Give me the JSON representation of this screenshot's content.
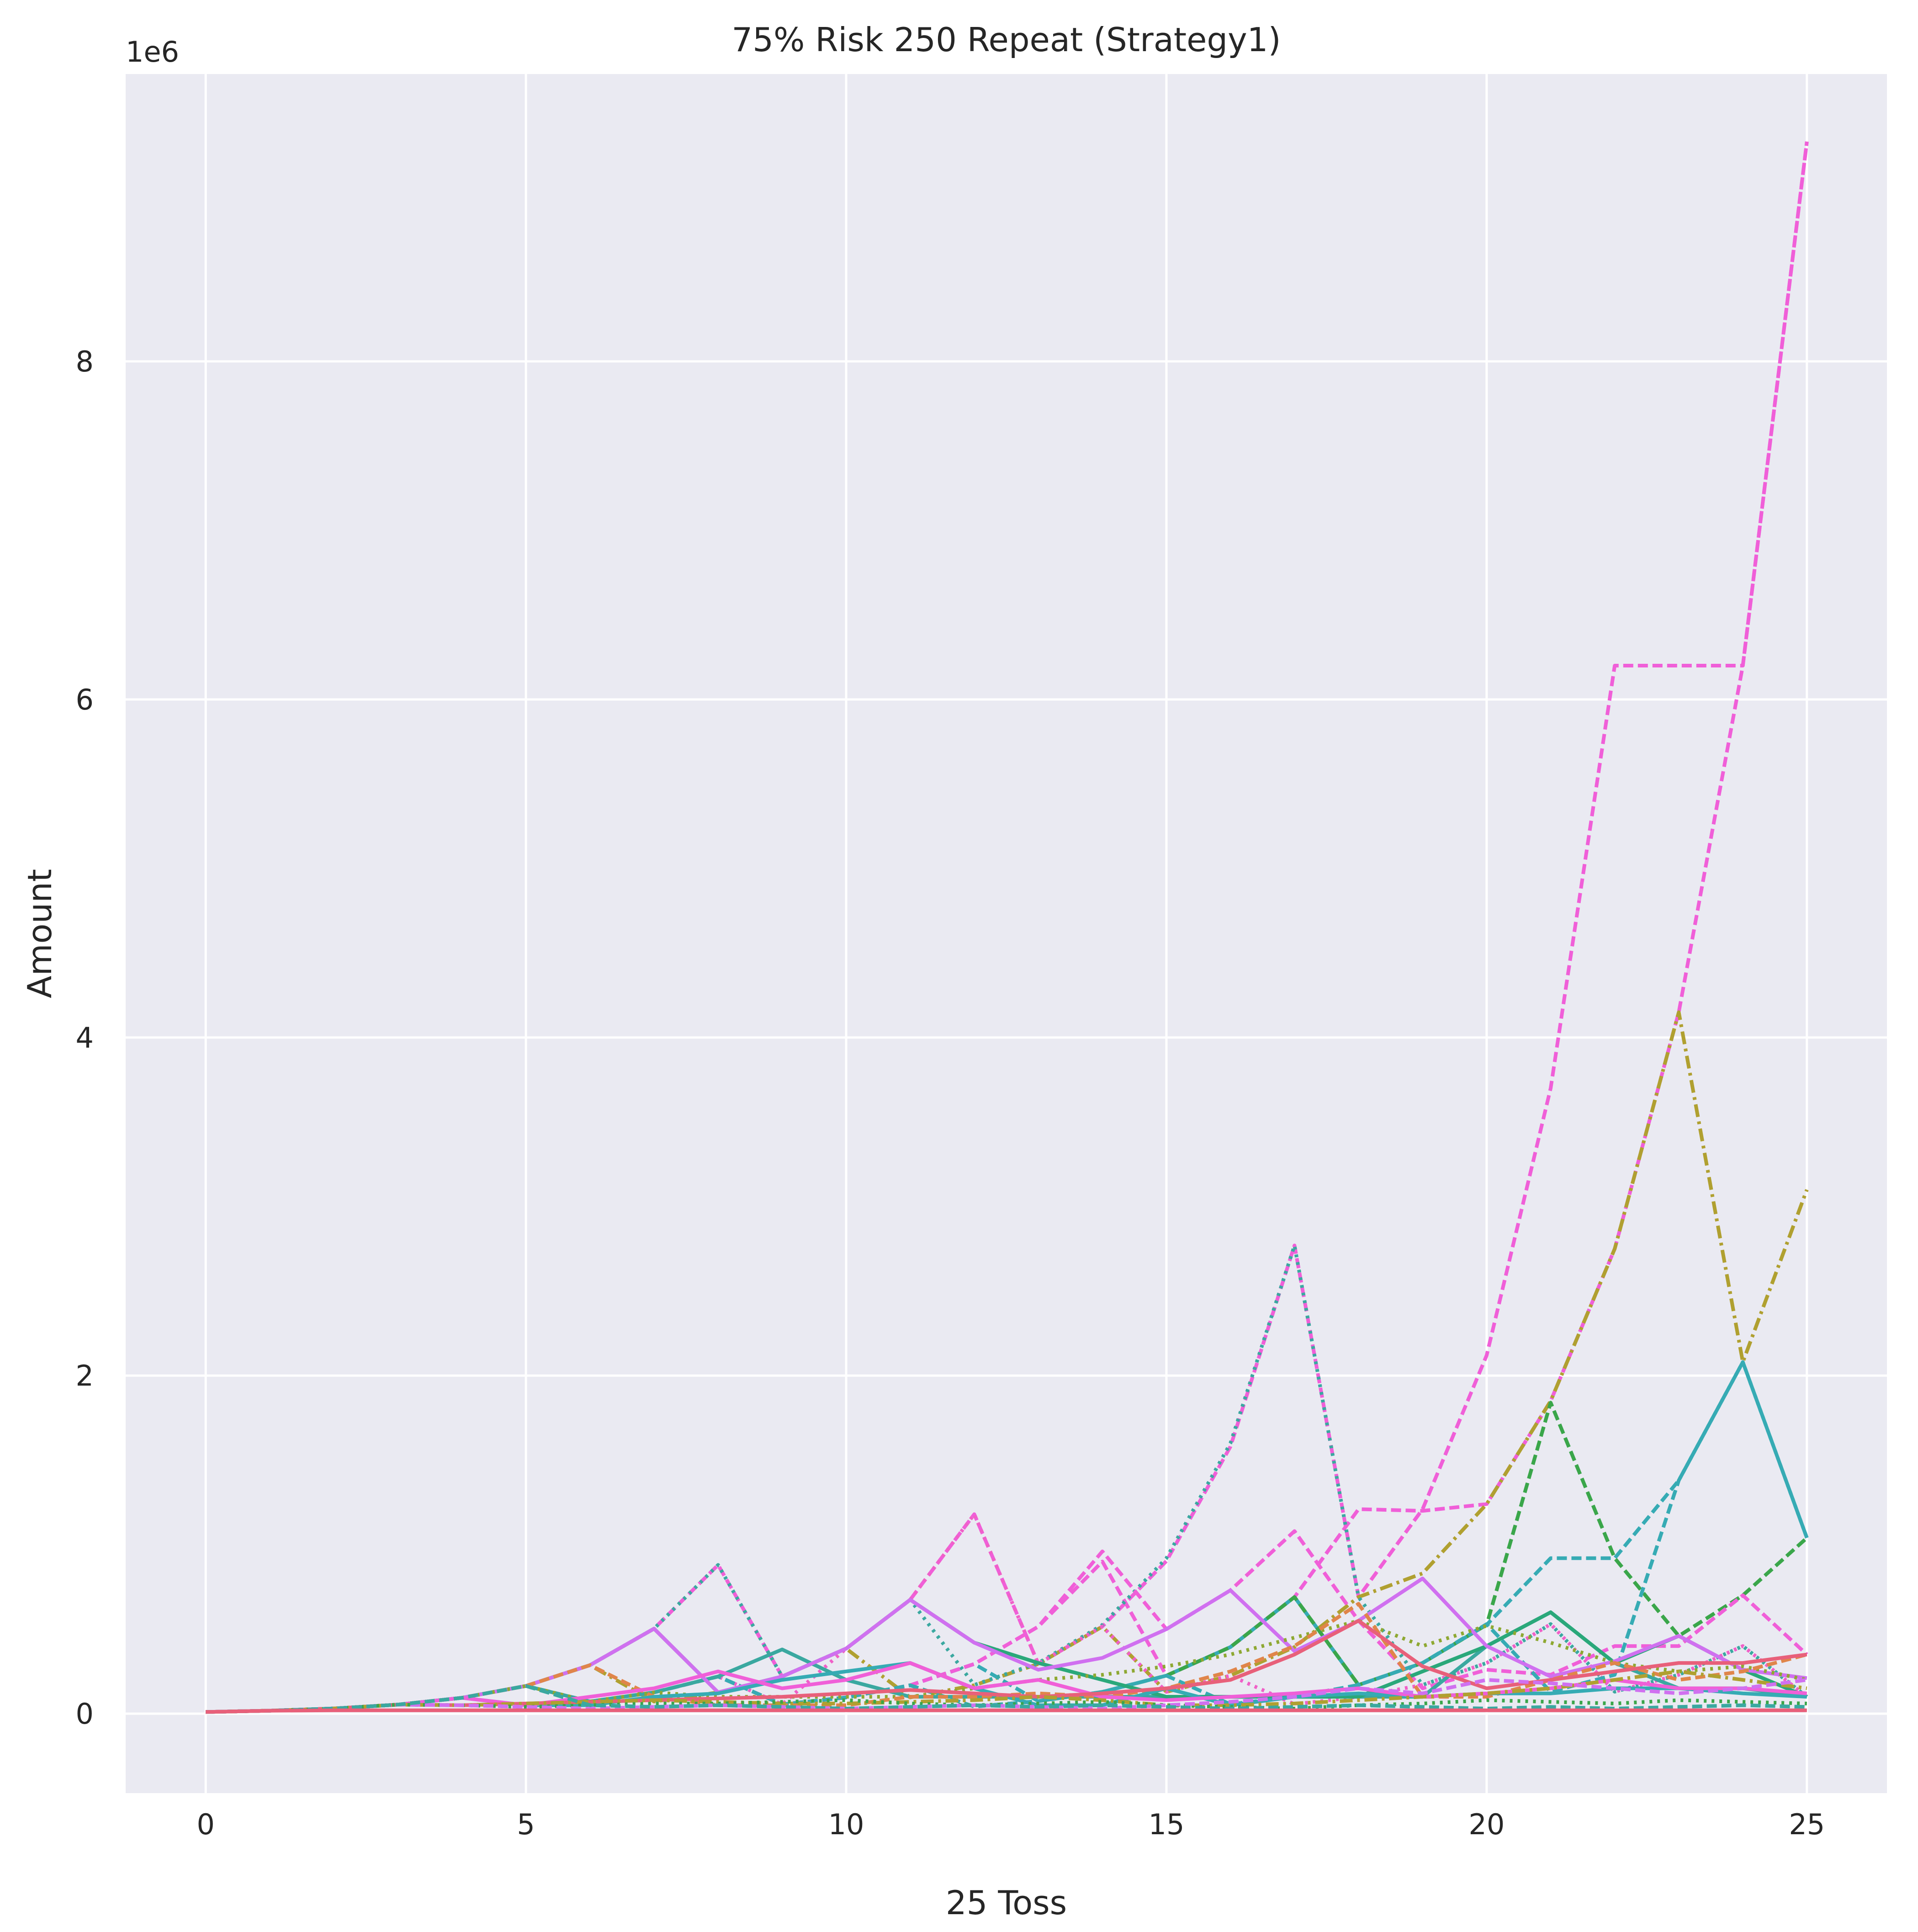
{
  "chart_data": {
    "type": "line",
    "title": "75% Risk 250 Repeat (Strategy1)",
    "xlabel": "25 Toss",
    "ylabel": "Amount",
    "y_offset_label": "1e6",
    "xlim": [
      -1.25,
      26.25
    ],
    "ylim": [
      -0.47,
      9.7
    ],
    "x_ticks": [
      0,
      5,
      10,
      15,
      20,
      25
    ],
    "y_ticks": [
      0,
      2,
      4,
      6,
      8
    ],
    "grid": true,
    "background": "#eaeaf2",
    "grid_color": "#ffffff",
    "x": [
      0,
      1,
      2,
      3,
      4,
      5,
      6,
      7,
      8,
      9,
      10,
      11,
      12,
      13,
      14,
      15,
      16,
      17,
      18,
      19,
      20,
      21,
      22,
      23,
      24,
      25
    ],
    "series": [
      {
        "color": "#f05fd8",
        "dash": "dashed",
        "values": [
          0.01,
          0.0175,
          0.0306,
          0.0536,
          0.0938,
          0.164,
          0.287,
          0.503,
          0.88,
          0.22,
          0.385,
          0.674,
          1.18,
          0.295,
          0.516,
          0.903,
          1.58,
          2.77,
          0.69,
          1.21,
          2.12,
          3.7,
          6.2,
          6.2,
          6.2,
          9.3
        ]
      },
      {
        "color": "#f05fd8",
        "dash": "dashed",
        "values": [
          0.01,
          0.0175,
          0.0306,
          0.0536,
          0.0938,
          0.164,
          0.072,
          0.126,
          0.22,
          0.055,
          0.096,
          0.168,
          0.294,
          0.515,
          0.9,
          0.225,
          0.394,
          0.69,
          1.21,
          1.2,
          1.24,
          1.85,
          2.75,
          4.15,
          6.2,
          9.3
        ]
      },
      {
        "color": "#b0a030",
        "dash": "dashdot",
        "values": [
          0.01,
          0.0175,
          0.0306,
          0.0536,
          0.0938,
          0.164,
          0.287,
          0.072,
          0.126,
          0.22,
          0.385,
          0.096,
          0.168,
          0.294,
          0.515,
          0.129,
          0.225,
          0.394,
          0.69,
          0.83,
          1.24,
          1.85,
          2.75,
          4.15,
          2.08,
          3.1
        ]
      },
      {
        "color": "#36abb4",
        "dash": "dashed",
        "values": [
          0.01,
          0.0175,
          0.0306,
          0.0536,
          0.0938,
          0.164,
          0.072,
          0.126,
          0.22,
          0.055,
          0.096,
          0.168,
          0.294,
          0.074,
          0.129,
          0.225,
          0.394,
          0.69,
          0.17,
          0.3,
          0.526,
          0.92,
          0.92,
          1.38,
          2.08,
          1.04
        ]
      },
      {
        "color": "#3aa8a0",
        "dash": "dotted",
        "values": [
          0.01,
          0.0175,
          0.0306,
          0.0536,
          0.0938,
          0.164,
          0.287,
          0.503,
          0.88,
          0.22,
          0.385,
          0.674,
          0.17,
          0.3,
          0.525,
          0.92,
          1.6,
          2.77,
          0.69,
          0.17,
          0.3,
          0.53,
          0.13,
          0.23,
          0.4,
          0.1
        ]
      },
      {
        "color": "#3aa64a",
        "dash": "dashed",
        "values": [
          0.01,
          0.0175,
          0.0306,
          0.0536,
          0.0938,
          0.164,
          0.072,
          0.126,
          0.22,
          0.055,
          0.096,
          0.168,
          0.042,
          0.074,
          0.129,
          0.225,
          0.394,
          0.69,
          0.17,
          0.3,
          0.526,
          1.84,
          0.92,
          0.46,
          0.7,
          1.04
        ]
      },
      {
        "color": "#f060c8",
        "dash": "dotted",
        "values": [
          0.01,
          0.0175,
          0.0306,
          0.0536,
          0.0938,
          0.164,
          0.072,
          0.126,
          0.22,
          0.055,
          0.385,
          0.674,
          1.18,
          0.295,
          0.516,
          0.129,
          0.225,
          0.056,
          0.1,
          0.17,
          0.3,
          0.53,
          0.13,
          0.23,
          0.4,
          0.1
        ]
      },
      {
        "color": "#f05fd8",
        "dash": "dashed",
        "values": [
          0.01,
          0.0175,
          0.0306,
          0.0536,
          0.0938,
          0.164,
          0.072,
          0.126,
          0.22,
          0.055,
          0.096,
          0.168,
          0.294,
          0.515,
          0.96,
          0.5,
          0.73,
          1.08,
          0.55,
          0.15,
          0.26,
          0.23,
          0.4,
          0.4,
          0.7,
          0.35
        ]
      },
      {
        "color": "#36abb4",
        "dash": "dashed",
        "values": [
          0.01,
          0.0175,
          0.0306,
          0.0536,
          0.0938,
          0.164,
          0.072,
          0.126,
          0.22,
          0.055,
          0.096,
          0.168,
          0.042,
          0.074,
          0.129,
          0.225,
          0.056,
          0.1,
          0.17,
          0.3,
          0.53,
          0.13,
          0.23,
          1.38,
          2.08,
          1.04
        ]
      },
      {
        "color": "#3aa8a0",
        "dash": "solid",
        "values": [
          0.01,
          0.0175,
          0.0306,
          0.0536,
          0.0938,
          0.164,
          0.072,
          0.126,
          0.22,
          0.38,
          0.2,
          0.1,
          0.1,
          0.1,
          0.1,
          0.1,
          0.1,
          0.1,
          0.1,
          0.1,
          0.4,
          0.6,
          0.3,
          0.15,
          0.15,
          0.1
        ]
      },
      {
        "color": "#2aa87a",
        "dash": "solid",
        "values": [
          0.01,
          0.0175,
          0.0306,
          0.0536,
          0.0938,
          0.164,
          0.287,
          0.503,
          0.126,
          0.22,
          0.385,
          0.674,
          0.42,
          0.3,
          0.2,
          0.1,
          0.1,
          0.1,
          0.1,
          0.25,
          0.4,
          0.6,
          0.3,
          0.46,
          0.26,
          0.1
        ]
      },
      {
        "color": "#d070f0",
        "dash": "solid",
        "values": [
          0.01,
          0.0175,
          0.0306,
          0.0536,
          0.0938,
          0.164,
          0.287,
          0.503,
          0.126,
          0.22,
          0.385,
          0.674,
          0.42,
          0.26,
          0.33,
          0.5,
          0.73,
          0.37,
          0.55,
          0.8,
          0.4,
          0.22,
          0.31,
          0.46,
          0.26,
          0.21
        ]
      },
      {
        "color": "#8ea832",
        "dash": "dotted",
        "values": [
          0.01,
          0.0175,
          0.0306,
          0.0536,
          0.0938,
          0.164,
          0.072,
          0.126,
          0.1,
          0.1,
          0.1,
          0.1,
          0.15,
          0.2,
          0.23,
          0.28,
          0.35,
          0.45,
          0.55,
          0.4,
          0.52,
          0.42,
          0.3,
          0.25,
          0.28,
          0.2
        ]
      },
      {
        "color": "#e0854a",
        "dash": "dashed",
        "values": [
          0.01,
          0.0175,
          0.0306,
          0.0536,
          0.0938,
          0.164,
          0.287,
          0.1,
          0.05,
          0.05,
          0.05,
          0.1,
          0.1,
          0.12,
          0.1,
          0.15,
          0.25,
          0.4,
          0.65,
          0.1,
          0.1,
          0.2,
          0.3,
          0.2,
          0.25,
          0.35
        ]
      },
      {
        "color": "#36abb4",
        "dash": "solid",
        "values": [
          0.01,
          0.0175,
          0.0306,
          0.0536,
          0.0938,
          0.05,
          0.05,
          0.1,
          0.12,
          0.2,
          0.25,
          0.3,
          0.15,
          0.05,
          0.05,
          0.15,
          0.05,
          0.1,
          0.12,
          0.1,
          0.12,
          0.12,
          0.15,
          0.15,
          0.12,
          0.1
        ]
      },
      {
        "color": "#f05fd8",
        "dash": "solid",
        "values": [
          0.01,
          0.0175,
          0.0306,
          0.0536,
          0.0938,
          0.05,
          0.1,
          0.15,
          0.25,
          0.15,
          0.2,
          0.3,
          0.15,
          0.2,
          0.1,
          0.08,
          0.1,
          0.12,
          0.15,
          0.1,
          0.12,
          0.15,
          0.2,
          0.15,
          0.15,
          0.12
        ]
      },
      {
        "color": "#e8607a",
        "dash": "solid",
        "values": [
          0.01,
          0.0175,
          0.0306,
          0.0536,
          0.05,
          0.06,
          0.07,
          0.08,
          0.09,
          0.1,
          0.12,
          0.14,
          0.12,
          0.1,
          0.12,
          0.15,
          0.2,
          0.35,
          0.55,
          0.28,
          0.15,
          0.2,
          0.25,
          0.3,
          0.3,
          0.35
        ]
      },
      {
        "color": "#b0a030",
        "dash": "dashdot",
        "values": [
          0.01,
          0.0175,
          0.0306,
          0.0536,
          0.05,
          0.06,
          0.07,
          0.08,
          0.07,
          0.06,
          0.06,
          0.07,
          0.08,
          0.1,
          0.08,
          0.05,
          0.05,
          0.06,
          0.08,
          0.1,
          0.12,
          0.15,
          0.2,
          0.25,
          0.2,
          0.15
        ]
      },
      {
        "color": "#3aa64a",
        "dash": "dotted",
        "values": [
          0.01,
          0.0175,
          0.0306,
          0.0536,
          0.05,
          0.04,
          0.05,
          0.06,
          0.06,
          0.07,
          0.08,
          0.06,
          0.05,
          0.06,
          0.07,
          0.05,
          0.04,
          0.03,
          0.05,
          0.06,
          0.08,
          0.07,
          0.06,
          0.08,
          0.07,
          0.06
        ]
      },
      {
        "color": "#d070f0",
        "dash": "dashed",
        "values": [
          0.01,
          0.0175,
          0.0306,
          0.0536,
          0.05,
          0.04,
          0.03,
          0.04,
          0.05,
          0.04,
          0.03,
          0.04,
          0.05,
          0.04,
          0.03,
          0.05,
          0.07,
          0.1,
          0.15,
          0.12,
          0.2,
          0.18,
          0.15,
          0.12,
          0.15,
          0.2
        ]
      },
      {
        "color": "#3aa8a0",
        "dash": "dashed",
        "values": [
          0.01,
          0.0175,
          0.0306,
          0.0536,
          0.0938,
          0.164,
          0.05,
          0.04,
          0.05,
          0.04,
          0.03,
          0.04,
          0.05,
          0.04,
          0.05,
          0.04,
          0.03,
          0.04,
          0.05,
          0.04,
          0.03,
          0.04,
          0.03,
          0.04,
          0.05,
          0.04
        ]
      },
      {
        "color": "#e8607a",
        "dash": "solid",
        "values": [
          0.01,
          0.0175,
          0.02,
          0.02,
          0.02,
          0.02,
          0.02,
          0.02,
          0.02,
          0.02,
          0.02,
          0.02,
          0.02,
          0.02,
          0.02,
          0.02,
          0.02,
          0.02,
          0.02,
          0.02,
          0.02,
          0.02,
          0.02,
          0.02,
          0.02,
          0.02
        ]
      }
    ]
  }
}
